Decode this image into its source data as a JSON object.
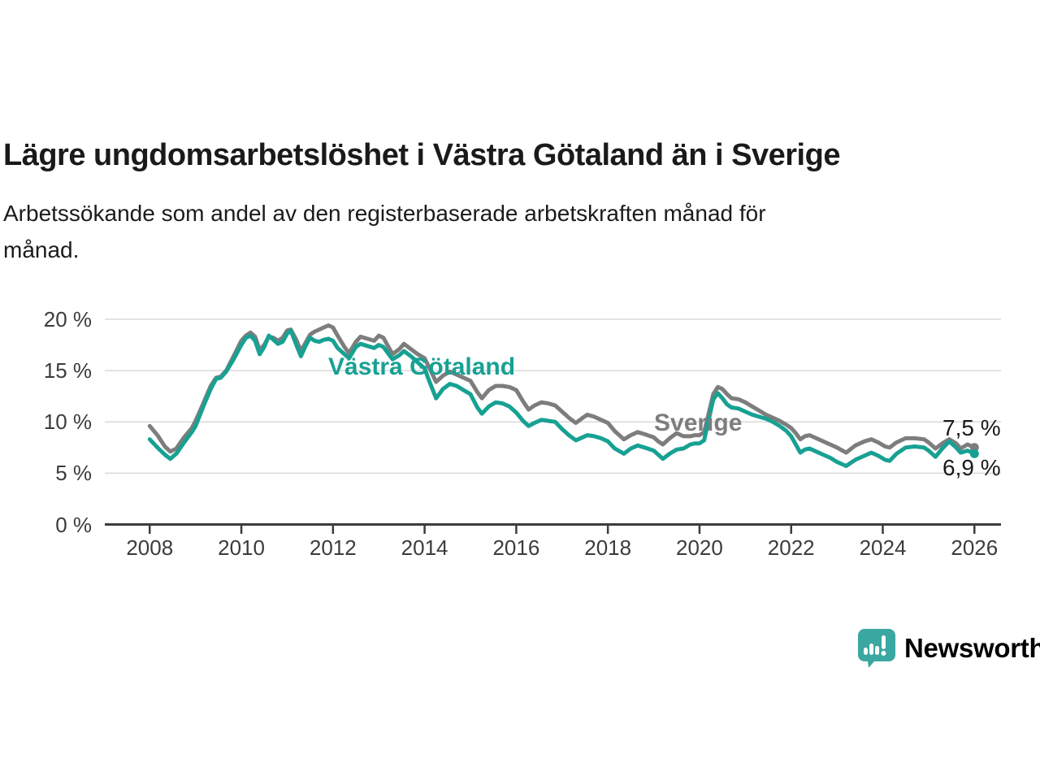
{
  "header": {
    "title": "Lägre ungdomsarbetslöshet i Västra Götaland än i Sverige",
    "subtitle_lines": [
      "Arbetssökande som andel av den registerbaserade arbetskraften månad för",
      "månad."
    ]
  },
  "chart_data": {
    "type": "line",
    "title": "Lägre ungdomsarbetslöshet i Västra Götaland än i Sverige",
    "xlabel": "",
    "ylabel": "Arbetssökande som andel av den registerbaserade arbetskraften",
    "x_unit": "decimal year (monthly data)",
    "grid": "horizontal",
    "legend_position": "inline-labels",
    "xlim": [
      2007.02,
      2026.58
    ],
    "ylim": [
      0,
      21
    ],
    "y_ticks": [
      0,
      5,
      10,
      15,
      20
    ],
    "y_tick_suffix": " %",
    "x_ticks": [
      2008,
      2010,
      2012,
      2014,
      2016,
      2018,
      2020,
      2022,
      2024,
      2026
    ],
    "x": [
      2008.0,
      2008.17,
      2008.33,
      2008.45,
      2008.58,
      2008.75,
      2008.92,
      2009.0,
      2009.17,
      2009.33,
      2009.45,
      2009.55,
      2009.67,
      2009.83,
      2010.0,
      2010.1,
      2010.2,
      2010.3,
      2010.4,
      2010.5,
      2010.6,
      2010.7,
      2010.8,
      2010.9,
      2011.0,
      2011.08,
      2011.2,
      2011.3,
      2011.4,
      2011.5,
      2011.6,
      2011.7,
      2011.8,
      2011.9,
      2012.0,
      2012.1,
      2012.25,
      2012.35,
      2012.5,
      2012.6,
      2012.75,
      2012.9,
      2013.0,
      2013.1,
      2013.3,
      2013.45,
      2013.55,
      2013.7,
      2013.85,
      2014.0,
      2014.1,
      2014.25,
      2014.4,
      2014.55,
      2014.7,
      2014.85,
      2015.0,
      2015.15,
      2015.25,
      2015.4,
      2015.55,
      2015.7,
      2015.85,
      2016.0,
      2016.15,
      2016.27,
      2016.4,
      2016.55,
      2016.7,
      2016.85,
      2017.0,
      2017.15,
      2017.3,
      2017.45,
      2017.55,
      2017.7,
      2017.85,
      2018.0,
      2018.15,
      2018.35,
      2018.5,
      2018.65,
      2018.8,
      2019.0,
      2019.1,
      2019.2,
      2019.35,
      2019.5,
      2019.65,
      2019.8,
      2019.9,
      2020.0,
      2020.1,
      2020.2,
      2020.3,
      2020.4,
      2020.5,
      2020.6,
      2020.7,
      2020.85,
      2021.0,
      2021.15,
      2021.3,
      2021.45,
      2021.6,
      2021.75,
      2021.9,
      2022.0,
      2022.1,
      2022.2,
      2022.3,
      2022.4,
      2022.55,
      2022.7,
      2022.85,
      2023.0,
      2023.2,
      2023.4,
      2023.6,
      2023.75,
      2023.9,
      2024.05,
      2024.15,
      2024.3,
      2024.5,
      2024.7,
      2024.9,
      2025.0,
      2025.15,
      2025.3,
      2025.45,
      2025.6,
      2025.7,
      2025.85,
      2026.0
    ],
    "series": [
      {
        "name": "Sverige",
        "color": "#7d7d7d",
        "end_value_label": "7,5 %",
        "values": [
          9.6,
          8.7,
          7.6,
          7.1,
          7.4,
          8.5,
          9.4,
          10.1,
          11.8,
          13.5,
          14.3,
          14.4,
          15.0,
          16.4,
          17.9,
          18.4,
          18.7,
          18.3,
          17.0,
          17.5,
          18.3,
          18.2,
          17.9,
          18.2,
          18.9,
          19.0,
          18.0,
          16.9,
          17.7,
          18.5,
          18.8,
          19.0,
          19.2,
          19.4,
          19.2,
          18.4,
          17.3,
          16.7,
          17.8,
          18.3,
          18.1,
          17.9,
          18.4,
          18.2,
          16.6,
          17.1,
          17.6,
          17.1,
          16.6,
          16.2,
          15.3,
          13.9,
          14.5,
          14.9,
          14.6,
          14.3,
          14.0,
          12.9,
          12.3,
          13.1,
          13.5,
          13.5,
          13.4,
          13.1,
          12.0,
          11.2,
          11.6,
          11.9,
          11.8,
          11.6,
          11.0,
          10.4,
          9.9,
          10.4,
          10.7,
          10.5,
          10.2,
          9.9,
          9.1,
          8.3,
          8.7,
          9.0,
          8.8,
          8.5,
          8.1,
          7.8,
          8.4,
          8.9,
          8.6,
          8.6,
          8.7,
          8.7,
          9.0,
          10.8,
          12.7,
          13.4,
          13.2,
          12.7,
          12.3,
          12.2,
          11.9,
          11.5,
          11.1,
          10.7,
          10.4,
          10.1,
          9.7,
          9.4,
          8.9,
          8.3,
          8.6,
          8.7,
          8.4,
          8.1,
          7.8,
          7.5,
          7.0,
          7.7,
          8.1,
          8.3,
          8.0,
          7.6,
          7.5,
          8.0,
          8.4,
          8.4,
          8.3,
          8.0,
          7.4,
          7.9,
          8.3,
          7.9,
          7.4,
          7.8,
          7.5
        ]
      },
      {
        "name": "Västra Götaland",
        "color": "#17a193",
        "end_value_label": "6,9 %",
        "values": [
          8.3,
          7.5,
          6.8,
          6.4,
          6.9,
          8.0,
          9.0,
          9.6,
          11.5,
          13.2,
          14.2,
          14.3,
          14.9,
          16.1,
          17.5,
          18.2,
          18.4,
          17.9,
          16.6,
          17.3,
          18.4,
          18.0,
          17.6,
          17.8,
          18.6,
          18.9,
          17.5,
          16.4,
          17.4,
          18.2,
          17.9,
          17.8,
          18.0,
          18.1,
          17.9,
          17.2,
          16.6,
          16.2,
          17.3,
          17.6,
          17.4,
          17.2,
          17.5,
          17.3,
          16.1,
          16.5,
          16.9,
          16.4,
          15.8,
          15.2,
          14.0,
          12.3,
          13.2,
          13.7,
          13.5,
          13.1,
          12.7,
          11.4,
          10.8,
          11.5,
          11.9,
          11.8,
          11.5,
          10.9,
          10.1,
          9.6,
          9.9,
          10.2,
          10.1,
          10.0,
          9.3,
          8.7,
          8.2,
          8.5,
          8.7,
          8.6,
          8.4,
          8.1,
          7.4,
          6.9,
          7.4,
          7.7,
          7.5,
          7.2,
          6.8,
          6.4,
          6.9,
          7.3,
          7.4,
          7.8,
          7.9,
          7.9,
          8.2,
          10.2,
          12.2,
          12.8,
          12.3,
          11.7,
          11.4,
          11.3,
          11.0,
          10.7,
          10.5,
          10.3,
          10.0,
          9.6,
          9.1,
          8.6,
          7.8,
          7.0,
          7.3,
          7.4,
          7.1,
          6.8,
          6.5,
          6.1,
          5.7,
          6.3,
          6.7,
          7.0,
          6.7,
          6.3,
          6.2,
          6.9,
          7.5,
          7.6,
          7.5,
          7.2,
          6.6,
          7.4,
          8.1,
          7.5,
          7.0,
          7.2,
          6.9
        ]
      }
    ],
    "annotations": {
      "vg_label": "Västra Götaland",
      "se_label": "Sverige",
      "se_end_label": "7,5 %",
      "vg_end_label": "6,9 %"
    },
    "colors": {
      "axis": "#3c3c3c",
      "grid": "#d9d9d9",
      "tick_text": "#3c3c3c"
    }
  },
  "footer": {
    "brand_name": "Newsworthy",
    "brand_color": "#35a29c",
    "logo_icon": "speech-bubble-bar-chart-exclamation"
  }
}
